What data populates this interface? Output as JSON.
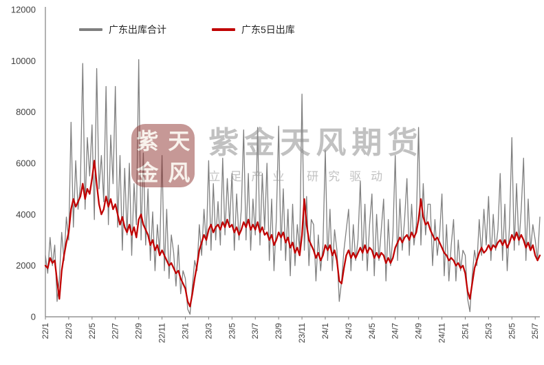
{
  "watermark": {
    "seal_chars": [
      "紫",
      "天",
      "金",
      "风"
    ],
    "title": "紫金天风期货",
    "subtitle": "立足产业 研究驱动"
  },
  "chart_data": {
    "type": "line",
    "title": "",
    "xlabel": "",
    "ylabel": "",
    "ylim": [
      0,
      12000
    ],
    "yticks": [
      0,
      2000,
      4000,
      6000,
      8000,
      10000,
      12000
    ],
    "grid": false,
    "legend_position": "top",
    "xtick_labels": [
      "22/1",
      "22/3",
      "22/5",
      "22/7",
      "22/9",
      "22/11",
      "23/1",
      "23/3",
      "23/5",
      "23/7",
      "23/9",
      "23/11",
      "24/1",
      "24/3",
      "24/5",
      "24/7",
      "24/9",
      "24/11",
      "25/1",
      "25/3",
      "25/5",
      "25/7"
    ],
    "points_per_month": 5,
    "x_start_month": "2022-01",
    "x_end_month": "2025-07",
    "series": [
      {
        "name": "广东出库合计",
        "color": "#7F7F7F",
        "stroke_width": 1.3,
        "values": [
          2400,
          1700,
          3100,
          2000,
          2800,
          600,
          1500,
          3300,
          2200,
          3900,
          3000,
          7600,
          3500,
          6100,
          4200,
          5200,
          9900,
          4200,
          7000,
          5500,
          7500,
          3800,
          9700,
          5000,
          6300,
          4500,
          9000,
          3600,
          7100,
          5200,
          9000,
          3500,
          6300,
          2600,
          5800,
          3200,
          6000,
          2400,
          5200,
          3600,
          10050,
          3000,
          6400,
          2800,
          5000,
          2200,
          4100,
          1800,
          3600,
          2500,
          6300,
          1800,
          4200,
          1500,
          3200,
          2500,
          1200,
          2800,
          900,
          1800,
          1500,
          300,
          100,
          1200,
          2200,
          1800,
          3600,
          2400,
          4200,
          2800,
          6100,
          2600,
          5200,
          3000,
          4500,
          2800,
          6200,
          3200,
          5400,
          3600,
          5600,
          2600,
          4800,
          3000,
          4200,
          7300,
          3000,
          5600,
          2600,
          4600,
          3200,
          7400,
          2800,
          5600,
          3400,
          6000,
          2200,
          4600,
          1800,
          3800,
          7450,
          2600,
          5000,
          2200,
          4200,
          1600,
          4400,
          2000,
          3600,
          2600,
          8700,
          2600,
          4700,
          2000,
          3800,
          3600,
          1400,
          3200,
          1800,
          2800,
          6500,
          2200,
          4200,
          1800,
          3400,
          2600,
          600,
          1400,
          2600,
          3400,
          4200,
          1800,
          3600,
          2200,
          3000,
          5300,
          2200,
          4400,
          1800,
          3600,
          4800,
          1600,
          4000,
          2200,
          3400,
          4600,
          1400,
          3800,
          2000,
          3200,
          6300,
          2200,
          4600,
          2600,
          3800,
          5400,
          2400,
          4400,
          2800,
          3600,
          7400,
          2800,
          5200,
          3200,
          4400,
          4400,
          2000,
          3800,
          2400,
          3200,
          4800,
          1600,
          3600,
          1400,
          2800,
          3800,
          1400,
          3000,
          1800,
          2600,
          2400,
          700,
          200,
          1600,
          2600,
          2000,
          3800,
          2400,
          4200,
          2800,
          4700,
          2200,
          4000,
          2600,
          3400,
          5600,
          2200,
          4400,
          1800,
          3600,
          7000,
          2600,
          5200,
          2800,
          4200,
          6200,
          2200,
          4600,
          2600,
          3600,
          3000,
          2200,
          3900
        ]
      },
      {
        "name": "广东5日出库",
        "color": "#C00000",
        "stroke_width": 2.3,
        "values": [
          2000,
          1900,
          2300,
          2100,
          2200,
          1400,
          700,
          1800,
          2400,
          2900,
          3300,
          4200,
          4600,
          4300,
          4500,
          4700,
          5200,
          4600,
          5000,
          4800,
          5400,
          6100,
          5200,
          4400,
          4000,
          4200,
          4700,
          4300,
          4600,
          4200,
          4400,
          4000,
          3600,
          3900,
          3500,
          3300,
          3600,
          3200,
          3500,
          3100,
          3800,
          4000,
          3600,
          3400,
          3200,
          2800,
          3000,
          2600,
          2800,
          2400,
          2600,
          2400,
          2200,
          2000,
          2100,
          1900,
          1700,
          1800,
          1500,
          1300,
          1100,
          600,
          400,
          900,
          1500,
          2000,
          2600,
          2900,
          3200,
          3000,
          3400,
          3600,
          3300,
          3500,
          3600,
          3400,
          3700,
          3500,
          3800,
          3500,
          3600,
          3300,
          3500,
          3200,
          3400,
          3700,
          3500,
          3800,
          3400,
          3600,
          3400,
          3700,
          3300,
          3500,
          3200,
          3300,
          3000,
          3200,
          2800,
          3000,
          3300,
          3100,
          3300,
          2900,
          3100,
          2700,
          2900,
          2500,
          2700,
          2400,
          3200,
          4600,
          3600,
          3000,
          2800,
          2600,
          2300,
          2500,
          2200,
          2400,
          2800,
          2600,
          2800,
          2400,
          2600,
          2200,
          1400,
          1300,
          1900,
          2400,
          2600,
          2300,
          2500,
          2300,
          2500,
          2700,
          2500,
          2800,
          2500,
          2700,
          2600,
          2300,
          2500,
          2300,
          2500,
          2400,
          2100,
          2300,
          2100,
          2300,
          2700,
          2900,
          3100,
          2900,
          3100,
          3200,
          3000,
          3300,
          3100,
          3300,
          3800,
          4600,
          3900,
          3600,
          3700,
          3400,
          3200,
          3000,
          3100,
          2900,
          2700,
          2500,
          2400,
          2200,
          2300,
          2200,
          2000,
          2100,
          1900,
          2000,
          1700,
          1000,
          700,
          1300,
          1900,
          2200,
          2500,
          2700,
          2500,
          2600,
          2800,
          2600,
          2800,
          2700,
          2900,
          3000,
          2800,
          3000,
          2700,
          2900,
          3200,
          3000,
          3300,
          3000,
          3200,
          3000,
          2700,
          2900,
          2600,
          2800,
          2400,
          2200,
          2400
        ]
      }
    ]
  }
}
